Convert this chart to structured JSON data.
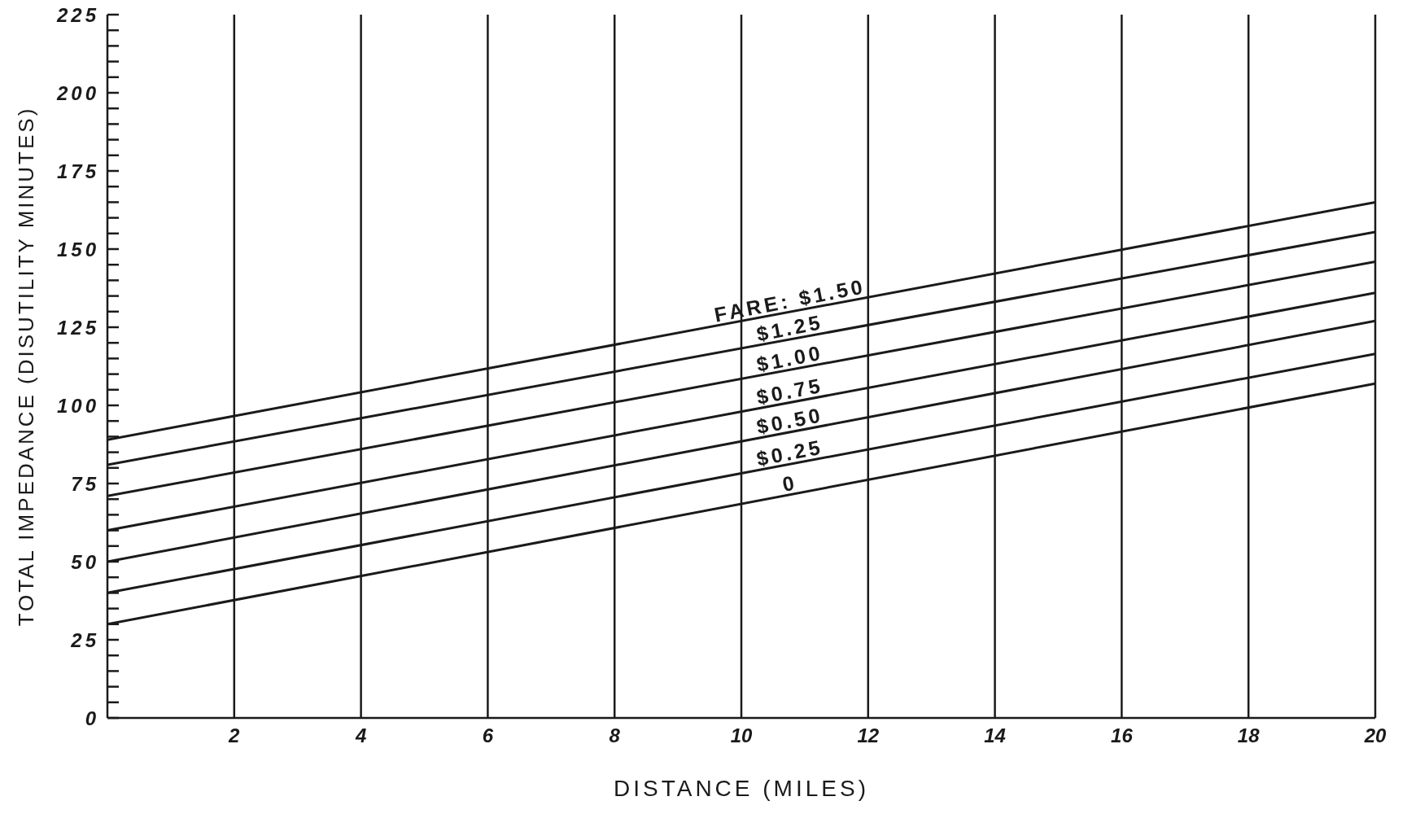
{
  "chart_data": {
    "type": "line",
    "xlabel": "DISTANCE (MILES)",
    "ylabel": "TOTAL IMPEDANCE (DISUTILITY MINUTES)",
    "x": [
      0,
      20
    ],
    "series": [
      {
        "name": "FARE: $1.50",
        "color": "#1a1a1a",
        "values": [
          89,
          165
        ]
      },
      {
        "name": "$1.25",
        "color": "#1a1a1a",
        "values": [
          81,
          155.5
        ]
      },
      {
        "name": "$1.00",
        "color": "#1a1a1a",
        "values": [
          71,
          146
        ]
      },
      {
        "name": "$0.75",
        "color": "#1a1a1a",
        "values": [
          60,
          136
        ]
      },
      {
        "name": "$0.50",
        "color": "#1a1a1a",
        "values": [
          50,
          127
        ]
      },
      {
        "name": "$0.25",
        "color": "#1a1a1a",
        "values": [
          40,
          116.5
        ]
      },
      {
        "name": "0",
        "color": "#1a1a1a",
        "values": [
          30,
          107
        ]
      }
    ],
    "xlim": [
      0,
      20
    ],
    "xticks": [
      2,
      4,
      6,
      8,
      10,
      12,
      14,
      16,
      18,
      20
    ],
    "ylim": [
      0,
      225
    ],
    "yticks": [
      0,
      {
        "value": 5,
        "label": null
      },
      {
        "value": 10,
        "label": null
      },
      {
        "value": 15,
        "label": null
      },
      {
        "value": 20,
        "label": null
      },
      25,
      {
        "value": 30,
        "label": null
      },
      {
        "value": 35,
        "label": null
      },
      {
        "value": 40,
        "label": null
      },
      {
        "value": 45,
        "label": null
      },
      50,
      {
        "value": 55,
        "label": null
      },
      {
        "value": 60,
        "label": null
      },
      {
        "value": 65,
        "label": null
      },
      {
        "value": 70,
        "label": null
      },
      75,
      {
        "value": 80,
        "label": null
      },
      {
        "value": 85,
        "label": null
      },
      {
        "value": 90,
        "label": null
      },
      {
        "value": 95,
        "label": null
      },
      100,
      {
        "value": 105,
        "label": null
      },
      {
        "value": 110,
        "label": null
      },
      {
        "value": 115,
        "label": null
      },
      {
        "value": 120,
        "label": null
      },
      125,
      {
        "value": 130,
        "label": null
      },
      {
        "value": 135,
        "label": null
      },
      {
        "value": 140,
        "label": null
      },
      {
        "value": 145,
        "label": null
      },
      150,
      {
        "value": 155,
        "label": null
      },
      {
        "value": 160,
        "label": null
      },
      {
        "value": 165,
        "label": null
      },
      {
        "value": 170,
        "label": null
      },
      175,
      {
        "value": 180,
        "label": null
      },
      {
        "value": 185,
        "label": null
      },
      {
        "value": 190,
        "label": null
      },
      {
        "value": 195,
        "label": null
      },
      200,
      {
        "value": 205,
        "label": null
      },
      {
        "value": 210,
        "label": null
      },
      {
        "value": 215,
        "label": null
      },
      {
        "value": 220,
        "label": null
      },
      225
    ],
    "grid": "x",
    "marker": "none",
    "line_style": "solid",
    "legend": false
  }
}
